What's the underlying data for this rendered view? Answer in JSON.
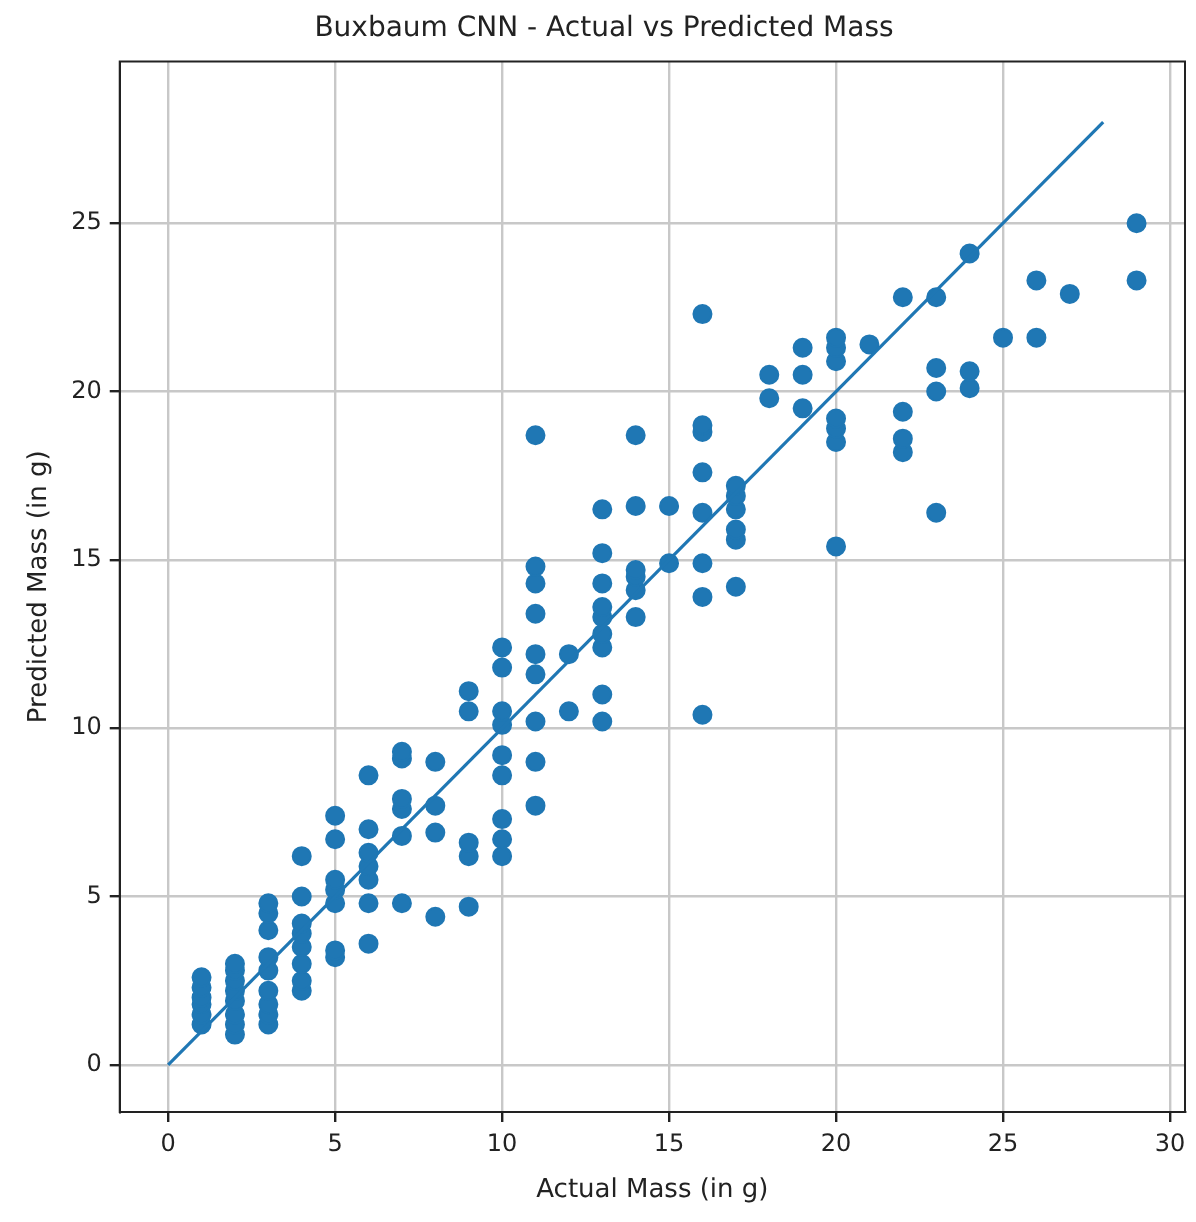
{
  "chart_data": {
    "type": "scatter",
    "title": "Buxbaum CNN - Actual vs Predicted Mass",
    "xlabel": "Actual Mass (in g)",
    "ylabel": "Predicted Mass (in g)",
    "xlim": [
      -1.45,
      30.45
    ],
    "ylim": [
      -1.4,
      29.8
    ],
    "xticks": [
      0,
      5,
      10,
      15,
      20,
      25,
      30
    ],
    "yticks": [
      0,
      5,
      10,
      15,
      20,
      25
    ],
    "grid": true,
    "marker": "circle",
    "series": [
      {
        "color": "#1f77b4",
        "x": [
          1,
          1,
          1,
          1,
          1,
          1,
          2,
          2,
          2,
          2,
          2,
          2,
          2,
          2,
          3,
          3,
          3,
          3,
          3,
          3,
          3,
          3,
          3,
          4,
          4,
          4,
          4,
          4,
          4,
          4,
          4,
          5,
          5,
          5,
          5,
          5,
          5,
          5,
          6,
          6,
          6,
          6,
          6,
          6,
          6,
          7,
          7,
          7,
          7,
          7,
          7,
          8,
          8,
          8,
          8,
          9,
          9,
          9,
          9,
          9,
          10,
          10,
          10,
          10,
          10,
          10,
          10,
          10,
          10,
          11,
          11,
          11,
          11,
          11,
          11,
          11,
          11,
          11,
          12,
          12,
          13,
          13,
          13,
          13,
          13,
          13,
          13,
          13,
          13,
          14,
          14,
          14,
          14,
          14,
          14,
          15,
          15,
          16,
          16,
          16,
          16,
          16,
          16,
          16,
          16,
          17,
          17,
          17,
          17,
          17,
          17,
          18,
          18,
          19,
          19,
          19,
          20,
          20,
          20,
          20,
          20,
          20,
          20,
          21,
          22,
          22,
          22,
          22,
          23,
          23,
          23,
          23,
          24,
          24,
          24,
          25,
          26,
          26,
          27,
          29,
          29
        ],
        "values": [
          1.2,
          1.5,
          1.8,
          2.0,
          2.3,
          2.6,
          0.9,
          1.2,
          1.5,
          1.9,
          2.2,
          2.5,
          2.8,
          3.0,
          1.2,
          1.5,
          1.8,
          2.2,
          2.8,
          3.2,
          4.0,
          4.5,
          4.8,
          2.2,
          2.5,
          3.0,
          3.5,
          3.9,
          4.2,
          5.0,
          6.2,
          3.2,
          3.4,
          4.8,
          5.2,
          5.5,
          6.7,
          7.4,
          3.6,
          4.8,
          5.5,
          5.9,
          6.3,
          7.0,
          8.6,
          4.8,
          6.8,
          7.6,
          7.9,
          9.1,
          9.3,
          4.4,
          6.9,
          7.7,
          9.0,
          4.7,
          6.2,
          6.6,
          10.5,
          11.1,
          6.2,
          6.7,
          7.3,
          8.6,
          9.2,
          10.1,
          10.5,
          11.8,
          12.4,
          7.7,
          9.0,
          10.2,
          11.6,
          12.2,
          13.4,
          14.3,
          14.8,
          18.7,
          10.5,
          12.2,
          10.2,
          11.0,
          12.4,
          12.8,
          13.3,
          13.6,
          14.3,
          15.2,
          16.5,
          13.3,
          14.1,
          14.5,
          14.7,
          16.6,
          18.7,
          14.9,
          16.6,
          10.4,
          13.9,
          14.9,
          16.4,
          17.6,
          18.8,
          19.0,
          22.3,
          14.2,
          15.6,
          15.9,
          16.5,
          16.9,
          17.2,
          19.8,
          20.5,
          19.5,
          20.5,
          21.3,
          15.4,
          18.5,
          18.9,
          19.2,
          20.9,
          21.3,
          21.6,
          21.4,
          18.2,
          18.6,
          19.4,
          22.8,
          16.4,
          20.0,
          20.7,
          22.8,
          20.1,
          20.6,
          24.1,
          21.6,
          21.6,
          23.3,
          22.9,
          23.3,
          25.0
        ]
      },
      {
        "type": "line",
        "color": "#1f77b4",
        "x": [
          0,
          28
        ],
        "values": [
          0,
          28
        ],
        "marker": "none",
        "line_style": "solid"
      }
    ]
  }
}
